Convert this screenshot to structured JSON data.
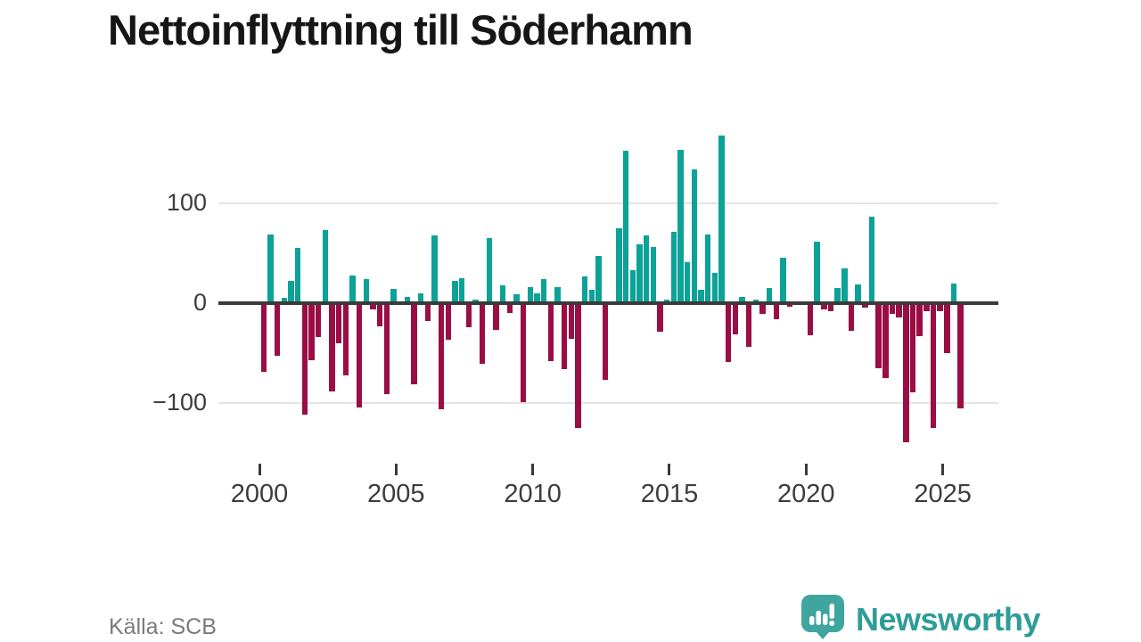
{
  "title": "Nettoinflyttning till Söderhamn",
  "source_label": "Källa: SCB",
  "brand": {
    "name": "Newsworthy",
    "logo_icon": "speech-bubble-bar-chart-icon",
    "icon_color": "#3ea69f",
    "text_color": "#2e9d98"
  },
  "colors": {
    "positive_bar": "#0ca298",
    "negative_bar": "#9b0d45",
    "zero_line": "#3a3a3a",
    "gridline": "#e4e4e4"
  },
  "chart_data": {
    "type": "bar",
    "title": "Nettoinflyttning till Söderhamn",
    "xlabel": "",
    "ylabel": "",
    "frequency": "quarterly",
    "start_year": 2000,
    "start_quarter": 1,
    "ylim": [
      -150,
      180
    ],
    "grid": "horizontal",
    "legend": "none",
    "y_ticks": [
      {
        "label": "100",
        "value": 100
      },
      {
        "label": "0",
        "value": 0
      },
      {
        "label": "−100",
        "value": -100
      }
    ],
    "x_ticks": [
      {
        "label": "2000",
        "index": 0
      },
      {
        "label": "2005",
        "index": 20
      },
      {
        "label": "2010",
        "index": 40
      },
      {
        "label": "2015",
        "index": 60
      },
      {
        "label": "2020",
        "index": 80
      },
      {
        "label": "2025",
        "index": 100
      }
    ],
    "values": [
      -68,
      69,
      -52,
      5,
      22,
      55,
      -110,
      -56,
      -33,
      73,
      -87,
      -39,
      -71,
      28,
      -103,
      24,
      -5,
      -22,
      -90,
      14,
      0,
      6,
      -80,
      10,
      -17,
      68,
      -105,
      -36,
      22,
      25,
      -23,
      4,
      -60,
      65,
      -26,
      18,
      -9,
      9,
      -98,
      16,
      10,
      24,
      -57,
      16,
      -65,
      -35,
      -124,
      27,
      13,
      47,
      -76,
      0,
      75,
      152,
      33,
      59,
      68,
      56,
      -28,
      4,
      71,
      153,
      41,
      134,
      13,
      69,
      30,
      167,
      -58,
      -30,
      6,
      -43,
      4,
      -10,
      15,
      -15,
      45,
      -3,
      0,
      0,
      -31,
      61,
      -5,
      -7,
      15,
      35,
      -27,
      19,
      -4,
      86,
      -64,
      -74,
      -10,
      -13,
      -138,
      -88,
      -32,
      -7,
      -124,
      -7,
      -49,
      20,
      -104
    ]
  }
}
